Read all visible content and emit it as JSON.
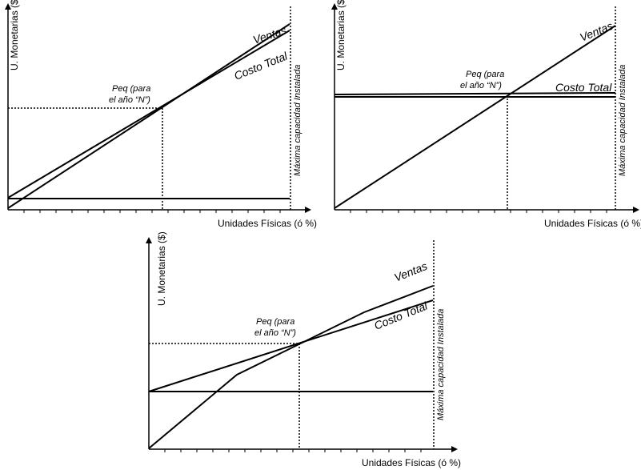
{
  "ylabel": "U. Monetarias ($)",
  "xlabel": "Unidades Físicas (ó %)",
  "capacity_label": "Máxima capacidad Instalada",
  "sales_label": "Ventas",
  "cost_label": "Costo Total",
  "peq_line1": "Peq (para",
  "peq_line2": "el año “N”)"
}
